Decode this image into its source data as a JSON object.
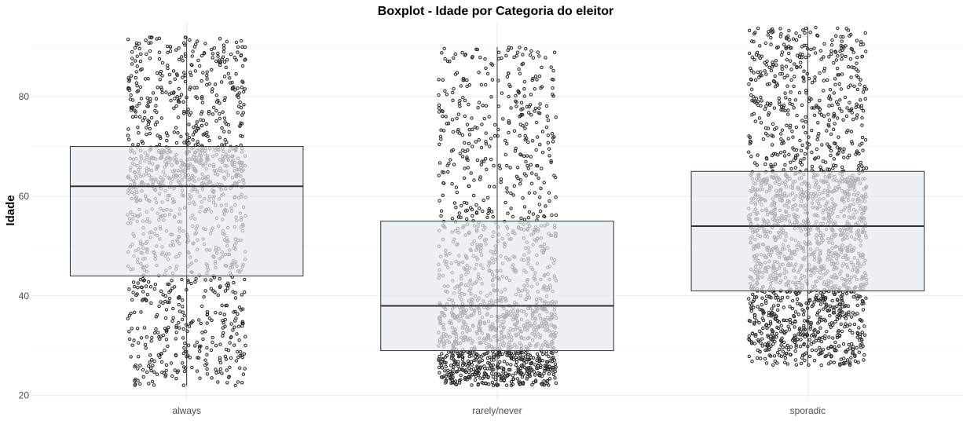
{
  "chart_data": {
    "type": "boxplot",
    "title": "Boxplot - Idade por Categoria do eleitor",
    "xlabel": "",
    "ylabel": "Idade",
    "categories": [
      "always",
      "rarely/never",
      "sporadic"
    ],
    "ylim": [
      19,
      95
    ],
    "y_ticks": [
      20,
      40,
      60,
      80
    ],
    "grid": true,
    "boxes": [
      {
        "category": "always",
        "min": 22,
        "q1": 44,
        "median": 62,
        "q3": 70,
        "max": 92
      },
      {
        "category": "rarely/never",
        "min": 22,
        "q1": 29,
        "median": 38,
        "q3": 55,
        "max": 90
      },
      {
        "category": "sporadic",
        "min": 26,
        "q1": 41,
        "median": 54,
        "q3": 65,
        "max": 94
      }
    ],
    "jitter_points": true,
    "colors": {
      "box_fill": "#e6ebee",
      "box_stroke": "#333333",
      "point": "#222222",
      "grid": "#ebebeb"
    }
  }
}
